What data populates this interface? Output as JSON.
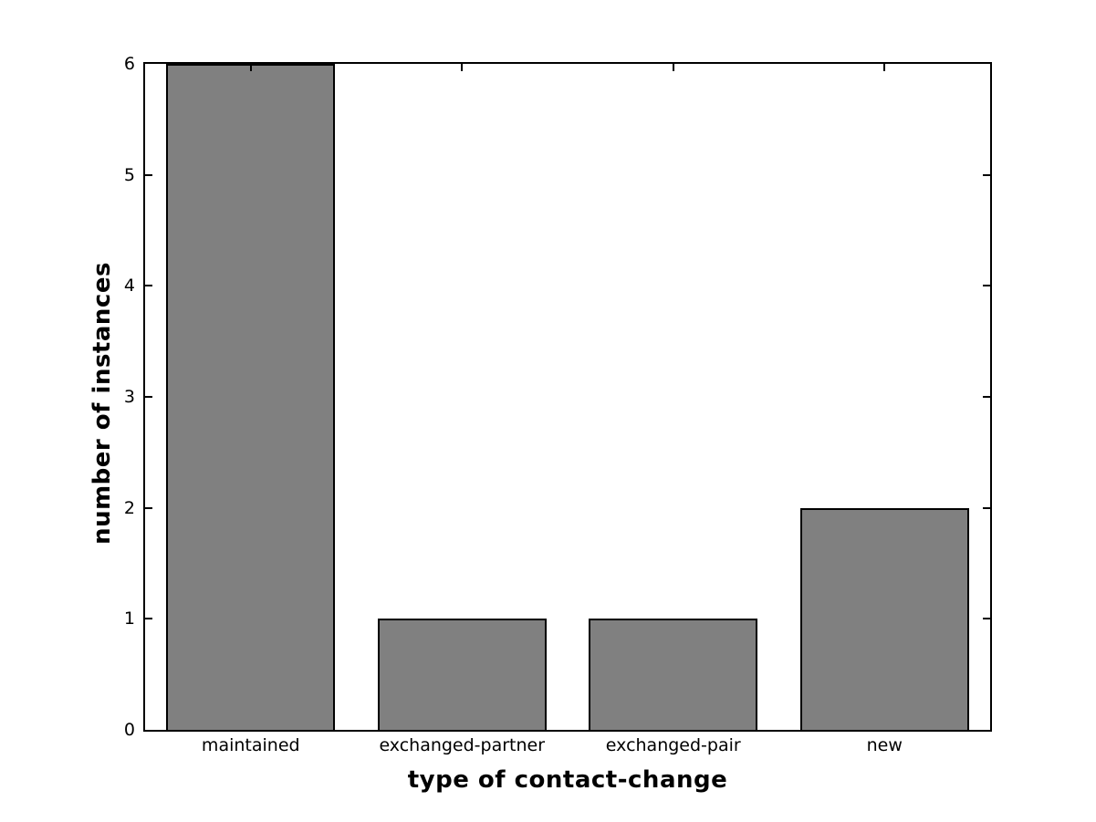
{
  "figure": {
    "background": "#ffffff"
  },
  "chart_data": {
    "type": "bar",
    "categories": [
      "maintained",
      "exchanged-partner",
      "exchanged-pair",
      "new"
    ],
    "values": [
      6,
      1,
      1,
      2
    ],
    "title": "",
    "xlabel": "type of contact-change",
    "ylabel": "number of instances",
    "ylim": [
      0,
      6
    ],
    "yticks": [
      0,
      1,
      2,
      3,
      4,
      5,
      6
    ],
    "bar_width_fraction": 0.8,
    "grid": false,
    "legend": null,
    "colors": {
      "bar_fill": "#808080",
      "bar_edge": "#000000",
      "axis": "#000000",
      "text": "#000000",
      "plot_background": "#ffffff"
    }
  }
}
